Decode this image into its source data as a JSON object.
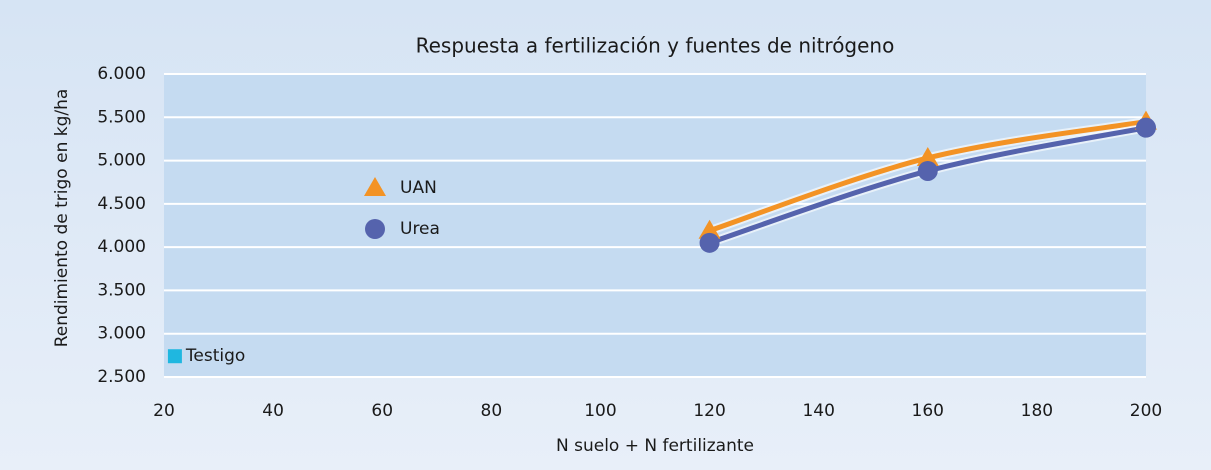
{
  "chart_data": {
    "type": "line",
    "title": "Respuesta a fertilización y fuentes de nitrógeno",
    "x_label": "N suelo + N fertilizante",
    "y_label": "Rendimiento de trigo en kg/ha",
    "xlim": [
      20,
      200
    ],
    "xticks": [
      20,
      40,
      60,
      80,
      100,
      120,
      140,
      160,
      180,
      200
    ],
    "ylim": [
      2500,
      6000
    ],
    "yticks": [
      {
        "value": 2500,
        "label": "2.500"
      },
      {
        "value": 3000,
        "label": "3.000"
      },
      {
        "value": 3500,
        "label": "3.500"
      },
      {
        "value": 4000,
        "label": "4.000"
      },
      {
        "value": 4500,
        "label": "4.500"
      },
      {
        "value": 5000,
        "label": "5.000"
      },
      {
        "value": 5500,
        "label": "5.500"
      },
      {
        "value": 6000,
        "label": "6.000"
      }
    ],
    "grid": true,
    "series": [
      {
        "name": "UAN",
        "color": "#f39325",
        "marker": "triangle",
        "x": [
          120,
          160,
          200
        ],
        "values": [
          4190,
          5030,
          5450
        ]
      },
      {
        "name": "Urea",
        "color": "#5563ad",
        "marker": "circle",
        "x": [
          120,
          160,
          200
        ],
        "values": [
          4050,
          4880,
          5380
        ]
      },
      {
        "name": "Testigo",
        "color": "#1fb7e0",
        "marker": "square",
        "x": [
          22
        ],
        "values": [
          2740
        ]
      }
    ]
  }
}
